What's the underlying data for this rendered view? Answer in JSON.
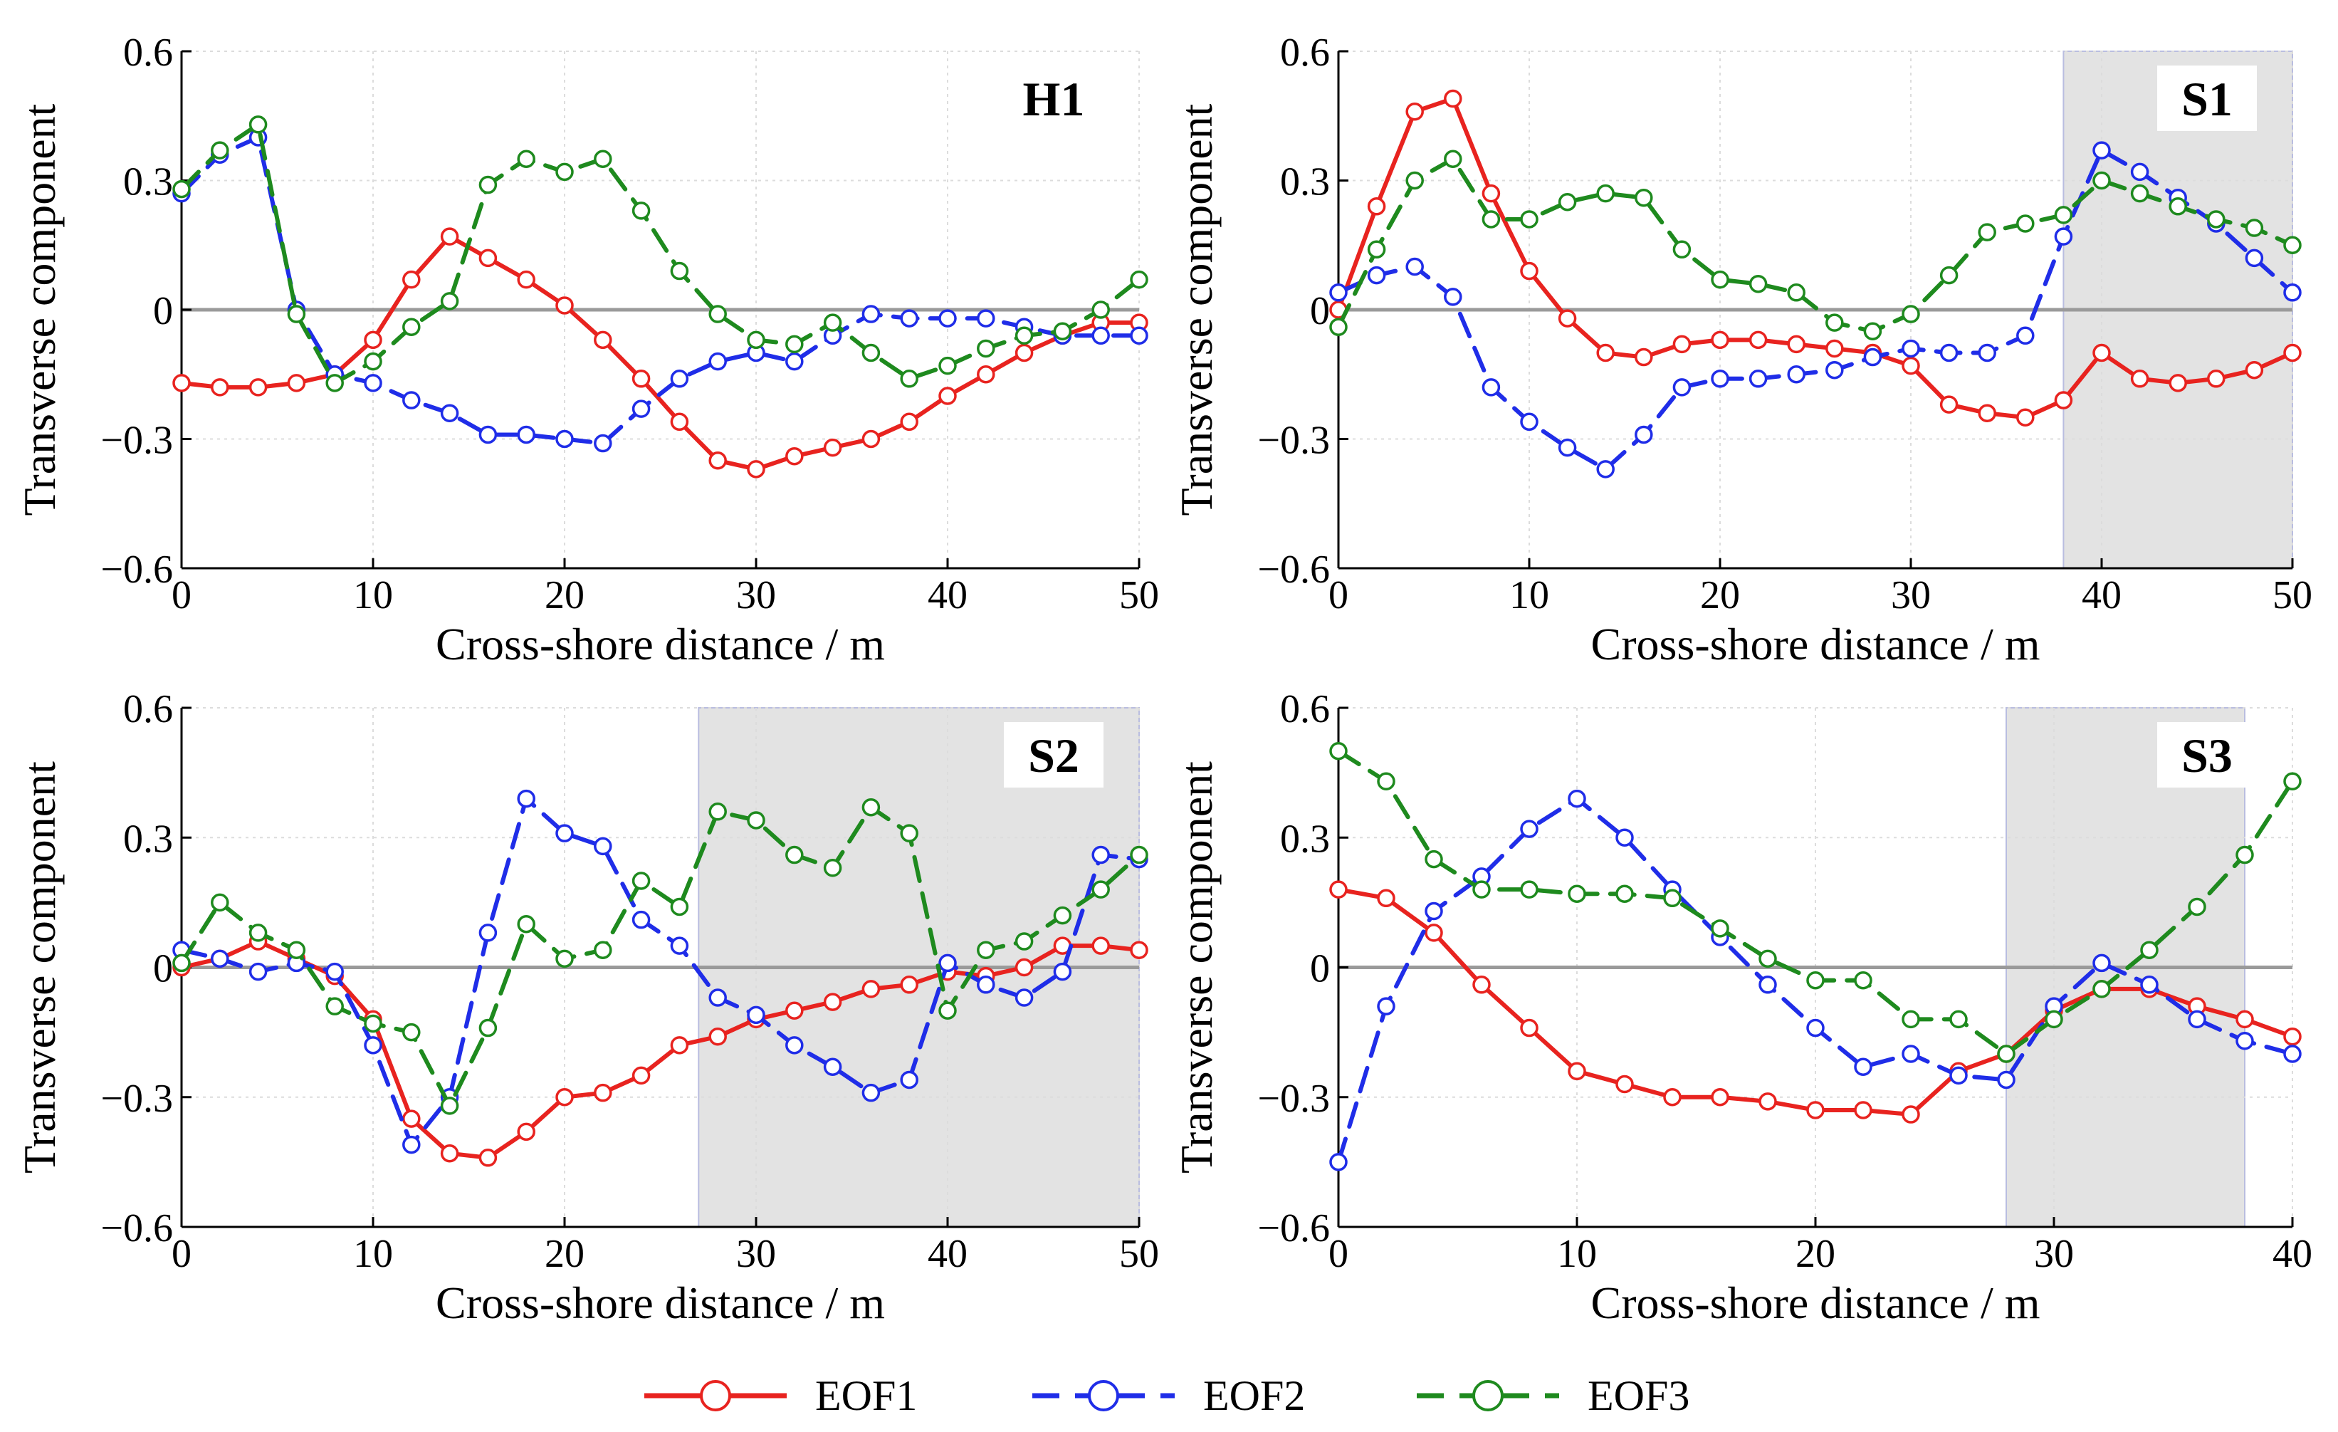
{
  "colors": {
    "EOF1": "#e8231f",
    "EOF2": "#1f2de8",
    "EOF3": "#1e8a1e",
    "shade": "#e3e3e3",
    "zero_line": "#9a9a9a",
    "grid": "#dcdcdc"
  },
  "legend": {
    "position": "bottom-center",
    "items": [
      {
        "label": "EOF1",
        "style": "solid"
      },
      {
        "label": "EOF2",
        "style": "dashed"
      },
      {
        "label": "EOF3",
        "style": "dashed"
      }
    ]
  },
  "chart_data": [
    {
      "type": "line",
      "panel_label": "H1",
      "xlabel": "Cross-shore distance / m",
      "ylabel": "Transverse component",
      "xlim": [
        0,
        50
      ],
      "ylim": [
        -0.6,
        0.6
      ],
      "xticks": [
        "0",
        "10",
        "20",
        "30",
        "40",
        "50"
      ],
      "yticks": [
        "−0.6",
        "−0.3",
        "0",
        "0.3",
        "0.6"
      ],
      "grid": true,
      "shaded_region": null,
      "x": [
        0,
        2,
        4,
        6,
        8,
        10,
        12,
        14,
        16,
        18,
        20,
        22,
        24,
        26,
        28,
        30,
        32,
        34,
        36,
        38,
        40,
        42,
        44,
        46,
        48,
        50
      ],
      "series": [
        {
          "name": "EOF1",
          "values": [
            -0.17,
            -0.18,
            -0.18,
            -0.17,
            -0.15,
            -0.07,
            0.07,
            0.17,
            0.12,
            0.07,
            0.01,
            -0.07,
            -0.16,
            -0.26,
            -0.35,
            -0.37,
            -0.34,
            -0.32,
            -0.3,
            -0.26,
            -0.2,
            -0.15,
            -0.1,
            -0.06,
            -0.03,
            -0.03
          ]
        },
        {
          "name": "EOF2",
          "values": [
            0.27,
            0.36,
            0.4,
            0.0,
            -0.15,
            -0.17,
            -0.21,
            -0.24,
            -0.29,
            -0.29,
            -0.3,
            -0.31,
            -0.23,
            -0.16,
            -0.12,
            -0.1,
            -0.12,
            -0.06,
            -0.01,
            -0.02,
            -0.02,
            -0.02,
            -0.04,
            -0.06,
            -0.06,
            -0.06
          ]
        },
        {
          "name": "EOF3",
          "values": [
            0.28,
            0.37,
            0.43,
            -0.01,
            -0.17,
            -0.12,
            -0.04,
            0.02,
            0.29,
            0.35,
            0.32,
            0.35,
            0.23,
            0.09,
            -0.01,
            -0.07,
            -0.08,
            -0.03,
            -0.1,
            -0.16,
            -0.13,
            -0.09,
            -0.06,
            -0.05,
            0.0,
            0.07
          ]
        }
      ]
    },
    {
      "type": "line",
      "panel_label": "S1",
      "xlabel": "Cross-shore distance / m",
      "ylabel": "Transverse component",
      "xlim": [
        0,
        50
      ],
      "ylim": [
        -0.6,
        0.6
      ],
      "xticks": [
        "0",
        "10",
        "20",
        "30",
        "40",
        "50"
      ],
      "yticks": [
        "−0.6",
        "−0.3",
        "0",
        "0.3",
        "0.6"
      ],
      "grid": true,
      "shaded_region": [
        38,
        50
      ],
      "x": [
        0,
        2,
        4,
        6,
        8,
        10,
        12,
        14,
        16,
        18,
        20,
        22,
        24,
        26,
        28,
        30,
        32,
        34,
        36,
        38,
        40,
        42,
        44,
        46,
        48,
        50
      ],
      "series": [
        {
          "name": "EOF1",
          "values": [
            0.0,
            0.24,
            0.46,
            0.49,
            0.27,
            0.09,
            -0.02,
            -0.1,
            -0.11,
            -0.08,
            -0.07,
            -0.07,
            -0.08,
            -0.09,
            -0.1,
            -0.13,
            -0.22,
            -0.24,
            -0.25,
            -0.21,
            -0.1,
            -0.16,
            -0.17,
            -0.16,
            -0.14,
            -0.1
          ]
        },
        {
          "name": "EOF2",
          "values": [
            0.04,
            0.08,
            0.1,
            0.03,
            -0.18,
            -0.26,
            -0.32,
            -0.37,
            -0.29,
            -0.18,
            -0.16,
            -0.16,
            -0.15,
            -0.14,
            -0.11,
            -0.09,
            -0.1,
            -0.1,
            -0.06,
            0.17,
            0.37,
            0.32,
            0.26,
            0.2,
            0.12,
            0.04
          ]
        },
        {
          "name": "EOF3",
          "values": [
            -0.04,
            0.14,
            0.3,
            0.35,
            0.21,
            0.21,
            0.25,
            0.27,
            0.26,
            0.14,
            0.07,
            0.06,
            0.04,
            -0.03,
            -0.05,
            -0.01,
            0.08,
            0.18,
            0.2,
            0.22,
            0.3,
            0.27,
            0.24,
            0.21,
            0.19,
            0.15
          ]
        }
      ]
    },
    {
      "type": "line",
      "panel_label": "S2",
      "xlabel": "Cross-shore distance / m",
      "ylabel": "Transverse component",
      "xlim": [
        0,
        50
      ],
      "ylim": [
        -0.6,
        0.6
      ],
      "xticks": [
        "0",
        "10",
        "20",
        "30",
        "40",
        "50"
      ],
      "yticks": [
        "−0.6",
        "−0.3",
        "0",
        "0.3",
        "0.6"
      ],
      "grid": true,
      "shaded_region": [
        27,
        50
      ],
      "x": [
        0,
        2,
        4,
        6,
        8,
        10,
        12,
        14,
        16,
        18,
        20,
        22,
        24,
        26,
        28,
        30,
        32,
        34,
        36,
        38,
        40,
        42,
        44,
        46,
        48,
        50
      ],
      "series": [
        {
          "name": "EOF1",
          "values": [
            0.0,
            0.02,
            0.06,
            0.02,
            -0.02,
            -0.12,
            -0.35,
            -0.43,
            -0.44,
            -0.38,
            -0.3,
            -0.29,
            -0.25,
            -0.18,
            -0.16,
            -0.12,
            -0.1,
            -0.08,
            -0.05,
            -0.04,
            -0.01,
            -0.02,
            0.0,
            0.05,
            0.05,
            0.04
          ]
        },
        {
          "name": "EOF2",
          "values": [
            0.04,
            0.02,
            -0.01,
            0.01,
            -0.01,
            -0.18,
            -0.41,
            -0.3,
            0.08,
            0.39,
            0.31,
            0.28,
            0.11,
            0.05,
            -0.07,
            -0.11,
            -0.18,
            -0.23,
            -0.29,
            -0.26,
            0.01,
            -0.04,
            -0.07,
            -0.01,
            0.26,
            0.25
          ]
        },
        {
          "name": "EOF3",
          "values": [
            0.01,
            0.15,
            0.08,
            0.04,
            -0.09,
            -0.13,
            -0.15,
            -0.32,
            -0.14,
            0.1,
            0.02,
            0.04,
            0.2,
            0.14,
            0.36,
            0.34,
            0.26,
            0.23,
            0.37,
            0.31,
            -0.1,
            0.04,
            0.06,
            0.12,
            0.18,
            0.26
          ]
        }
      ]
    },
    {
      "type": "line",
      "panel_label": "S3",
      "xlabel": "Cross-shore distance / m",
      "ylabel": "Transverse component",
      "xlim": [
        0,
        40
      ],
      "ylim": [
        -0.6,
        0.6
      ],
      "xticks": [
        "0",
        "10",
        "20",
        "30",
        "40"
      ],
      "yticks": [
        "−0.6",
        "−0.3",
        "0",
        "0.3",
        "0.6"
      ],
      "grid": true,
      "shaded_region": [
        28,
        38
      ],
      "x": [
        0,
        2,
        4,
        6,
        8,
        10,
        12,
        14,
        16,
        18,
        20,
        22,
        24,
        26,
        28,
        30,
        32,
        34,
        36,
        38,
        40
      ],
      "series": [
        {
          "name": "EOF1",
          "values": [
            0.18,
            0.16,
            0.08,
            -0.04,
            -0.14,
            -0.24,
            -0.27,
            -0.3,
            -0.3,
            -0.31,
            -0.33,
            -0.33,
            -0.34,
            -0.24,
            -0.2,
            -0.1,
            -0.05,
            -0.05,
            -0.09,
            -0.12,
            -0.16
          ]
        },
        {
          "name": "EOF2",
          "values": [
            -0.45,
            -0.09,
            0.13,
            0.21,
            0.32,
            0.39,
            0.3,
            0.18,
            0.07,
            -0.04,
            -0.14,
            -0.23,
            -0.2,
            -0.25,
            -0.26,
            -0.09,
            0.01,
            -0.04,
            -0.12,
            -0.17,
            -0.2
          ]
        },
        {
          "name": "EOF3",
          "values": [
            0.5,
            0.43,
            0.25,
            0.18,
            0.18,
            0.17,
            0.17,
            0.16,
            0.09,
            0.02,
            -0.03,
            -0.03,
            -0.12,
            -0.12,
            -0.2,
            -0.12,
            -0.05,
            0.04,
            0.14,
            0.26,
            0.43
          ]
        }
      ]
    }
  ]
}
